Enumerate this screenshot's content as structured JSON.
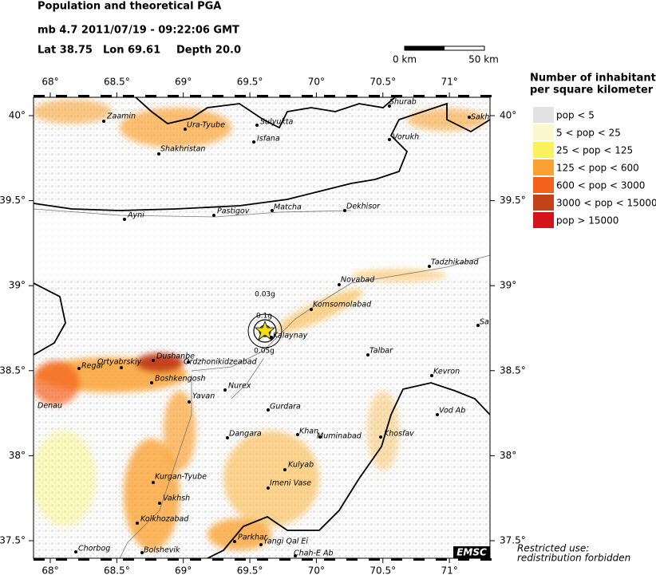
{
  "header": {
    "title": "Population and theoretical PGA",
    "event": "mb 4.7  2011/07/19 - 09:22:06 GMT",
    "lat_label": "Lat 38.75",
    "lon_label": "Lon  69.61",
    "depth_label": "Depth  20.0",
    "scale_start": "0 km",
    "scale_end": "50 km"
  },
  "legend": {
    "title_line1": "Number of inhabitants",
    "title_line2": "per square kilometer",
    "entries": [
      {
        "label": "pop < 5",
        "color": "#e2e2e2"
      },
      {
        "label": "5 < pop < 25",
        "color": "#fbf8d0"
      },
      {
        "label": "25 < pop < 125",
        "color": "#f9f25e"
      },
      {
        "label": "125 < pop < 600",
        "color": "#f9a233"
      },
      {
        "label": "600 < pop < 3000",
        "color": "#f4611d"
      },
      {
        "label": "3000 < pop < 15000",
        "color": "#c4421a"
      },
      {
        "label": "pop > 15000",
        "color": "#d4131a"
      }
    ]
  },
  "axes": {
    "lon_ticks": [
      {
        "value": 68,
        "label": "68°"
      },
      {
        "value": 68.5,
        "label": "68.5°"
      },
      {
        "value": 69,
        "label": "69°"
      },
      {
        "value": 69.5,
        "label": "69.5°"
      },
      {
        "value": 70,
        "label": "70°"
      },
      {
        "value": 70.5,
        "label": "70.5°"
      },
      {
        "value": 71,
        "label": "71°"
      }
    ],
    "lat_ticks": [
      {
        "value": 40,
        "label": "40°"
      },
      {
        "value": 39.5,
        "label": "39.5°"
      },
      {
        "value": 39,
        "label": "39°"
      },
      {
        "value": 38.5,
        "label": "38.5°"
      },
      {
        "value": 38,
        "label": "38°"
      },
      {
        "value": 37.5,
        "label": "37.5°"
      }
    ]
  },
  "pga_labels": [
    "0.03g",
    "0.1g",
    "0.05g"
  ],
  "cities": [
    "Zaamin",
    "Ura-Tyube",
    "Sulyukta",
    "Shurab",
    "Sakh",
    "Isfana",
    "Vorukh",
    "Shakhristan",
    "Ayni",
    "Pastigov",
    "Matcha",
    "Dekhisor",
    "Tadzhikabad",
    "Novabad",
    "Komsomolabad",
    "Sa",
    "Kalaynay",
    "Talbar",
    "Dushanbe",
    "Ordzhonikidzeabad",
    "Ortyabrskiy",
    "Regar",
    "Kevron",
    "Boshkengosh",
    "Nurex",
    "Yavan",
    "Denau",
    "Gurdara",
    "Vod Ab",
    "Dangara",
    "Khan",
    "Muminabad",
    "Khosfav",
    "Kulyab",
    "Kurgan-Tyube",
    "Imeni Vase",
    "Vakhsh",
    "Kolkhozabad",
    "Parkhar",
    "Yangi Qal Ei",
    "Chorbog",
    "Bolshevik",
    "Chah-E Ab"
  ],
  "footer": {
    "logo": "EMSC",
    "note_line1": "Restricted use:",
    "note_line2": "redistribution forbidden"
  }
}
